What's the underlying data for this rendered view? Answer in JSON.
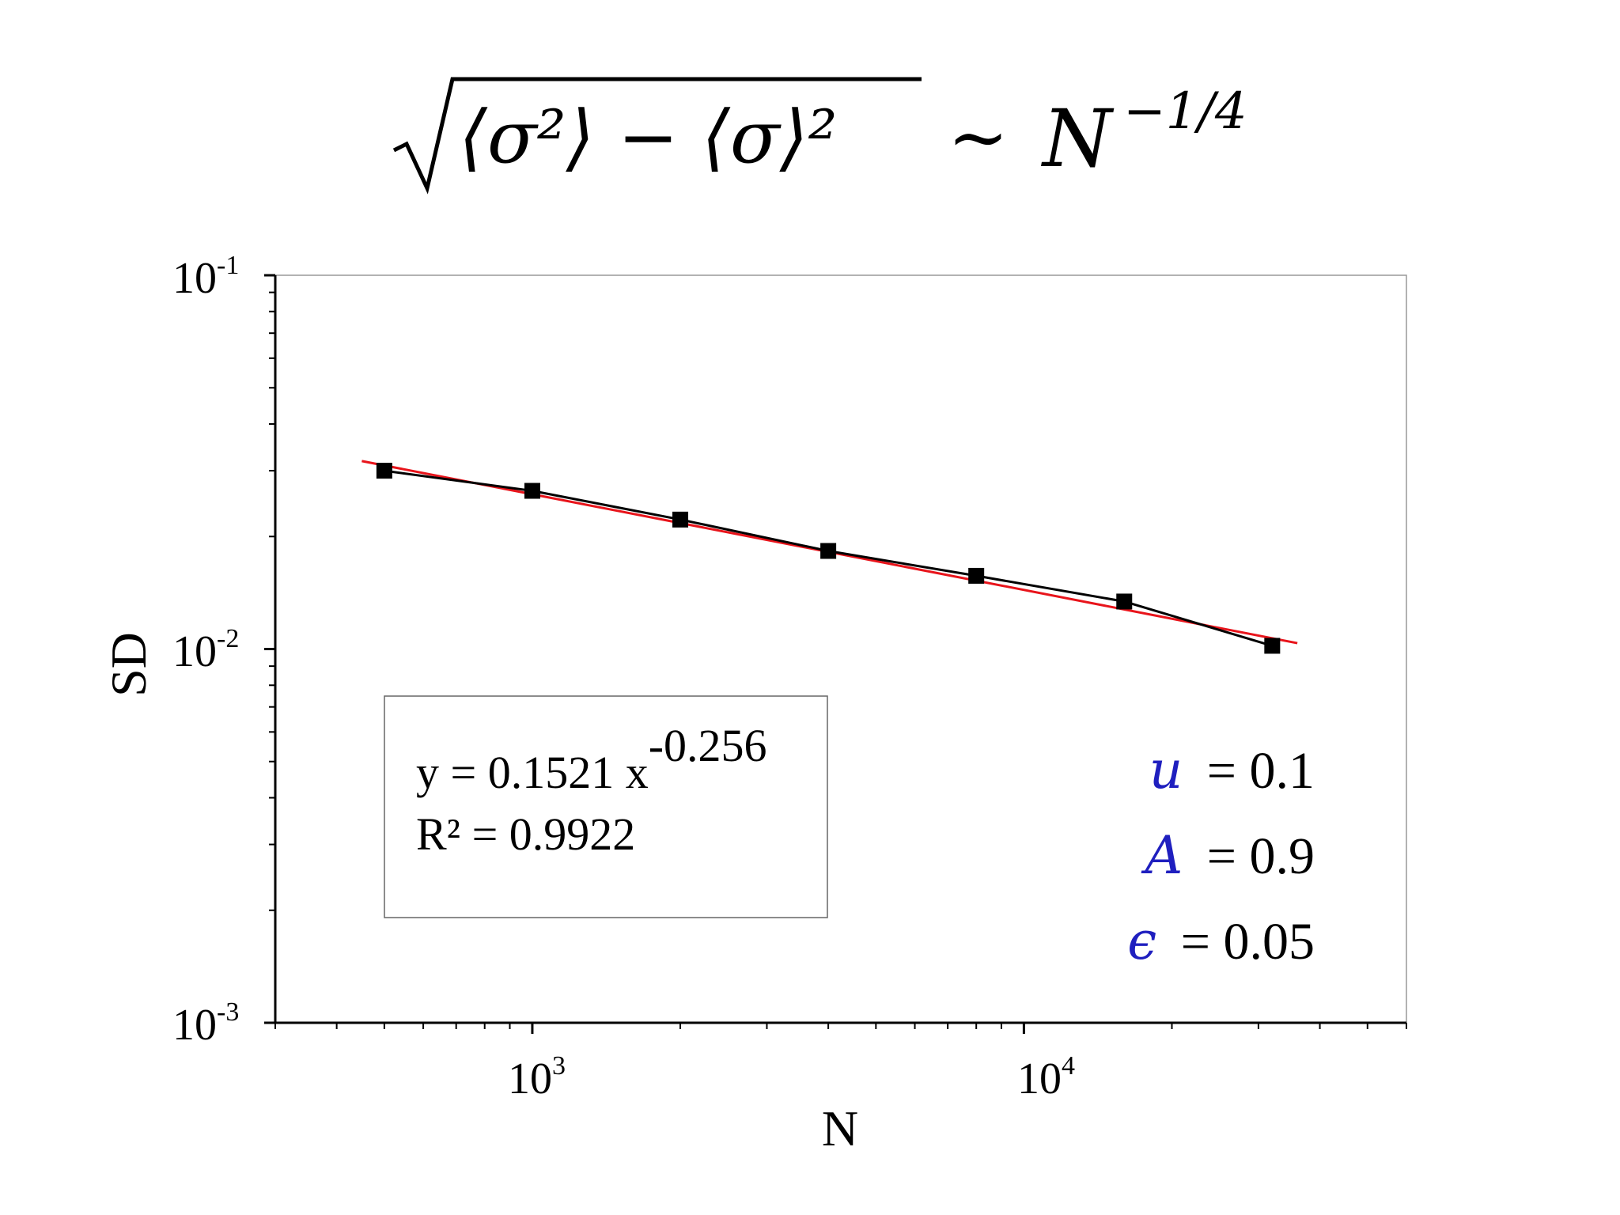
{
  "chart_data": {
    "type": "scatter",
    "title_formula": {
      "radicand": "⟨σ²⟩ − ⟨σ⟩²",
      "relation": "∼",
      "rhs_base": "N",
      "rhs_exponent": "−1/4"
    },
    "xlabel": "N",
    "ylabel": "SD",
    "x_scale": "log",
    "y_scale": "log",
    "xlim": [
      300,
      60000
    ],
    "ylim": [
      0.001,
      0.1
    ],
    "x_ticks": [
      {
        "value": 1000,
        "base": "10",
        "exp": "3"
      },
      {
        "value": 10000,
        "base": "10",
        "exp": "4"
      }
    ],
    "y_ticks": [
      {
        "value": 0.1,
        "base": "10",
        "exp": "-1"
      },
      {
        "value": 0.01,
        "base": "10",
        "exp": "-2"
      },
      {
        "value": 0.001,
        "base": "10",
        "exp": "-3"
      }
    ],
    "series": [
      {
        "x": [
          500,
          1000,
          2000,
          4000,
          8000,
          16000,
          32000
        ],
        "y": [
          0.03,
          0.0265,
          0.0222,
          0.0183,
          0.0157,
          0.0134,
          0.0102
        ],
        "color": "#000000",
        "marker": "square",
        "line": true
      }
    ],
    "fit": {
      "type": "power",
      "coefficient": 0.1521,
      "exponent": -0.256,
      "x_range": [
        450,
        36000
      ],
      "color": "#e8141b",
      "equation_prefix": "y = 0.1521 x",
      "equation_exponent": "-0.256",
      "r_squared_text": "R² = 0.9922"
    },
    "parameters": [
      {
        "symbol": "u",
        "value": "= 0.1"
      },
      {
        "symbol": "A",
        "value": "= 0.9"
      },
      {
        "symbol": "ϵ",
        "value": "= 0.05"
      }
    ],
    "parameter_symbol_color": "#1f1fbf",
    "grid": false
  }
}
